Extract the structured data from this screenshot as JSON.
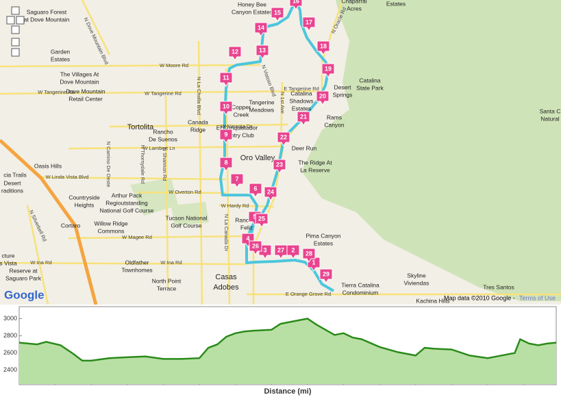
{
  "map": {
    "logo": "Google",
    "attribution": "Map data ©2010 Google -",
    "terms_link": "Terms of Use",
    "markers": [
      "1",
      "2",
      "3",
      "4",
      "5",
      "6",
      "7",
      "8",
      "9",
      "10",
      "11",
      "12",
      "13",
      "14",
      "15",
      "16",
      "17",
      "18",
      "19",
      "20",
      "21",
      "22",
      "23",
      "24",
      "25",
      "26",
      "27",
      "28",
      "29"
    ],
    "places": [
      [
        "Saguaro Forest",
        "at Dove Mountain"
      ],
      [
        "Garden",
        "Estates"
      ],
      [
        "The Villages At",
        "Dove Mountain"
      ],
      [
        "Dove Mountain",
        "Retail Center"
      ],
      [
        "Tortolita"
      ],
      [
        "Rancho",
        "De Suenos"
      ],
      [
        "Canada",
        "Ridge"
      ],
      [
        "Oasis Hills"
      ],
      [
        "Countryside",
        "Heights"
      ],
      [
        "Arthur Pack",
        "Regioutstanding",
        "National Golf Course"
      ],
      [
        "Tucson National",
        "Golf Course"
      ],
      [
        "Willow Ridge",
        "Commons"
      ],
      [
        "Cortaro"
      ],
      [
        "Oldfather",
        "Townhomes"
      ],
      [
        "North Point",
        "Terrace"
      ],
      [
        "Casas",
        "Adobes"
      ],
      [
        "Oro Valley"
      ],
      [
        "Deer Run"
      ],
      [
        "The Ridge At",
        "La Reserve"
      ],
      [
        "Pima Canyon",
        "Estates"
      ],
      [
        "Skyline",
        "Viviendas"
      ],
      [
        "Tres Santos"
      ],
      [
        "Kachina Hills"
      ],
      [
        "Tierra Catalina",
        "Condominium"
      ],
      [
        "Catalina",
        "State Park"
      ],
      [
        "Desert",
        "Springs"
      ],
      [
        "Rams",
        "Canyon"
      ],
      [
        "Catalina",
        "Shadows",
        "Estates"
      ],
      [
        "Tangerine",
        "Meadows"
      ],
      [
        "Honey Bee",
        "Canyon Estates"
      ],
      [
        "Chaparral",
        "Acres"
      ],
      [
        "Estates"
      ],
      [
        "Santa C",
        "Natural"
      ],
      [
        "cia Trails"
      ],
      [
        "Desert",
        "raditions"
      ],
      [
        "cture",
        "s Vista"
      ],
      [
        "Reserve at",
        "Saguaro Park"
      ],
      [
        "Copper",
        "Creek"
      ],
      [
        "El Conquistador",
        "Country Club"
      ],
      [
        "Ranchos",
        "Feliz"
      ]
    ],
    "roads": [
      "W Moore Rd",
      "W Tangerine Rd",
      "W Tangerine Rd",
      "E Tangerine Rd",
      "W Naranja Dr",
      "W Lambert Ln",
      "W Linda Vista Blvd",
      "W Overton Rd",
      "W Hardy Rd",
      "W Magee Rd",
      "W Ina Rd",
      "W Ina Rd",
      "E Orange Grove Rd",
      "N La Cholla Blvd",
      "N Shannon Rd",
      "N La Canada Dr",
      "N 1st Ave",
      "N Oracle Rd",
      "N Silverbell Rd",
      "N Thornydale Rd",
      "N Camino De Oeste",
      "N Vistoso Blvd",
      "N Dove Mountain Blvd"
    ]
  },
  "chart_data": {
    "type": "area",
    "xlabel": "Distance (mi)",
    "color": "#2a8a1a",
    "fill": "#b9e0a4",
    "x": [
      0,
      1,
      1.5,
      2.3,
      3,
      3.5,
      4,
      5,
      6,
      7,
      8,
      9,
      10,
      10.5,
      11,
      11.5,
      12,
      12.5,
      13,
      14,
      14.5,
      15,
      16,
      16.5,
      17,
      17.5,
      18,
      18.5,
      19,
      20,
      21,
      22,
      22.5,
      23,
      24,
      25,
      26,
      27,
      27.5,
      27.8,
      28.3,
      28.8,
      29.3,
      29.8
    ],
    "values": [
      2720,
      2700,
      2730,
      2690,
      2590,
      2510,
      2510,
      2540,
      2550,
      2560,
      2530,
      2530,
      2540,
      2660,
      2700,
      2790,
      2830,
      2850,
      2860,
      2870,
      2940,
      2960,
      3000,
      2930,
      2870,
      2810,
      2830,
      2780,
      2760,
      2670,
      2610,
      2570,
      2660,
      2650,
      2640,
      2570,
      2540,
      2580,
      2600,
      2760,
      2710,
      2690,
      2710,
      2720
    ],
    "xlim": [
      0,
      29.8
    ],
    "ylim": [
      2230,
      3140
    ],
    "xticks": [
      2,
      4,
      6,
      8,
      10,
      12,
      14,
      16,
      18,
      20,
      22,
      24,
      26,
      28
    ],
    "yticks": [
      2400,
      2600,
      2800,
      3000
    ]
  }
}
